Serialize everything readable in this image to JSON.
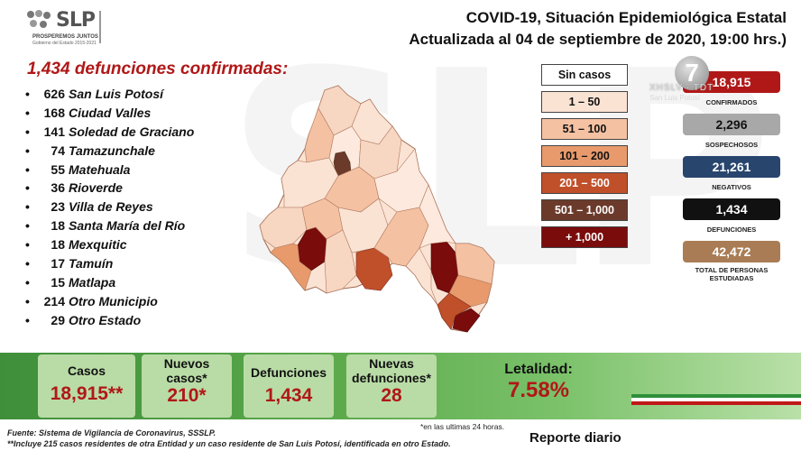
{
  "logo": {
    "name": "SLP",
    "tagline": "PROSPEREMOS JUNTOS",
    "subtitle": "Gobierno del Estado 2015-2021"
  },
  "header": {
    "title": "COVID-19, Situación Epidemiológica Estatal",
    "updated": "Actualizada al 04 de septiembre de 2020, 19:00 hrs.)"
  },
  "deaths_title": "1,434 defunciones confirmadas:",
  "municipalities": [
    {
      "count": "626",
      "name": "San Luis Potosí"
    },
    {
      "count": "168",
      "name": "Ciudad Valles"
    },
    {
      "count": "141",
      "name": "Soledad de Graciano"
    },
    {
      "count": "74",
      "name": "Tamazunchale"
    },
    {
      "count": "55",
      "name": "Matehuala"
    },
    {
      "count": "36",
      "name": "Rioverde"
    },
    {
      "count": "23",
      "name": "Villa de Reyes"
    },
    {
      "count": "18",
      "name": "Santa María del Río"
    },
    {
      "count": "18",
      "name": "Mexquitic"
    },
    {
      "count": "17",
      "name": "Tamuín"
    },
    {
      "count": "15",
      "name": "Matlapa"
    },
    {
      "count": "214",
      "name": "Otro Municipio"
    },
    {
      "count": "29",
      "name": "Otro Estado"
    }
  ],
  "legend": [
    {
      "label": "Sin casos",
      "color": "#ffffff",
      "text_color": "#111111"
    },
    {
      "label": "1 – 50",
      "color": "#fbe3d4",
      "text_color": "#111111"
    },
    {
      "label": "51 – 100",
      "color": "#f5c1a3",
      "text_color": "#111111"
    },
    {
      "label": "101 – 200",
      "color": "#e89a6c",
      "text_color": "#111111"
    },
    {
      "label": "201 – 500",
      "color": "#c0502a",
      "text_color": "#ffffff"
    },
    {
      "label": "501 – 1,000",
      "color": "#6b3a2a",
      "text_color": "#ffffff"
    },
    {
      "label": "+ 1,000",
      "color": "#7a0c0c",
      "text_color": "#ffffff"
    }
  ],
  "stats": [
    {
      "value": "18,915",
      "label": "CONFIRMADOS",
      "color": "#b01818"
    },
    {
      "value": "2,296",
      "label": "SOSPECHOSOS",
      "color": "#a8a8a8"
    },
    {
      "value": "21,261",
      "label": "NEGATIVOS",
      "color": "#28456e"
    },
    {
      "value": "1,434",
      "label": "DEFUNCIONES",
      "color": "#111111"
    },
    {
      "value": "42,472",
      "label": "TOTAL DE PERSONAS ESTUDIADAS",
      "color": "#a97c55"
    }
  ],
  "tv": {
    "channel": "7",
    "brand": "XHSLV · TDT",
    "city": "San Luis Potosí"
  },
  "summary": {
    "cases_label": "Casos",
    "cases_value": "18,915**",
    "new_cases_label_1": "Nuevos",
    "new_cases_label_2": "casos*",
    "new_cases_value": "210*",
    "deaths_label": "Defunciones",
    "deaths_value": "1,434",
    "new_deaths_label_1": "Nuevas",
    "new_deaths_label_2": "defunciones*",
    "new_deaths_value": "28",
    "lethality_label": "Letalidad:",
    "lethality_value": "7.58%"
  },
  "footer": {
    "source": "Fuente: Sistema de Vigilancia de Coronavirus, SSSLP.",
    "note": "**Incluye 215 casos residentes de otra Entidad y un caso residente de San Luis Potosí, identificada en otro Estado.",
    "note24": "*en las ultimas 24 horas.",
    "report": "Reporte diario"
  }
}
